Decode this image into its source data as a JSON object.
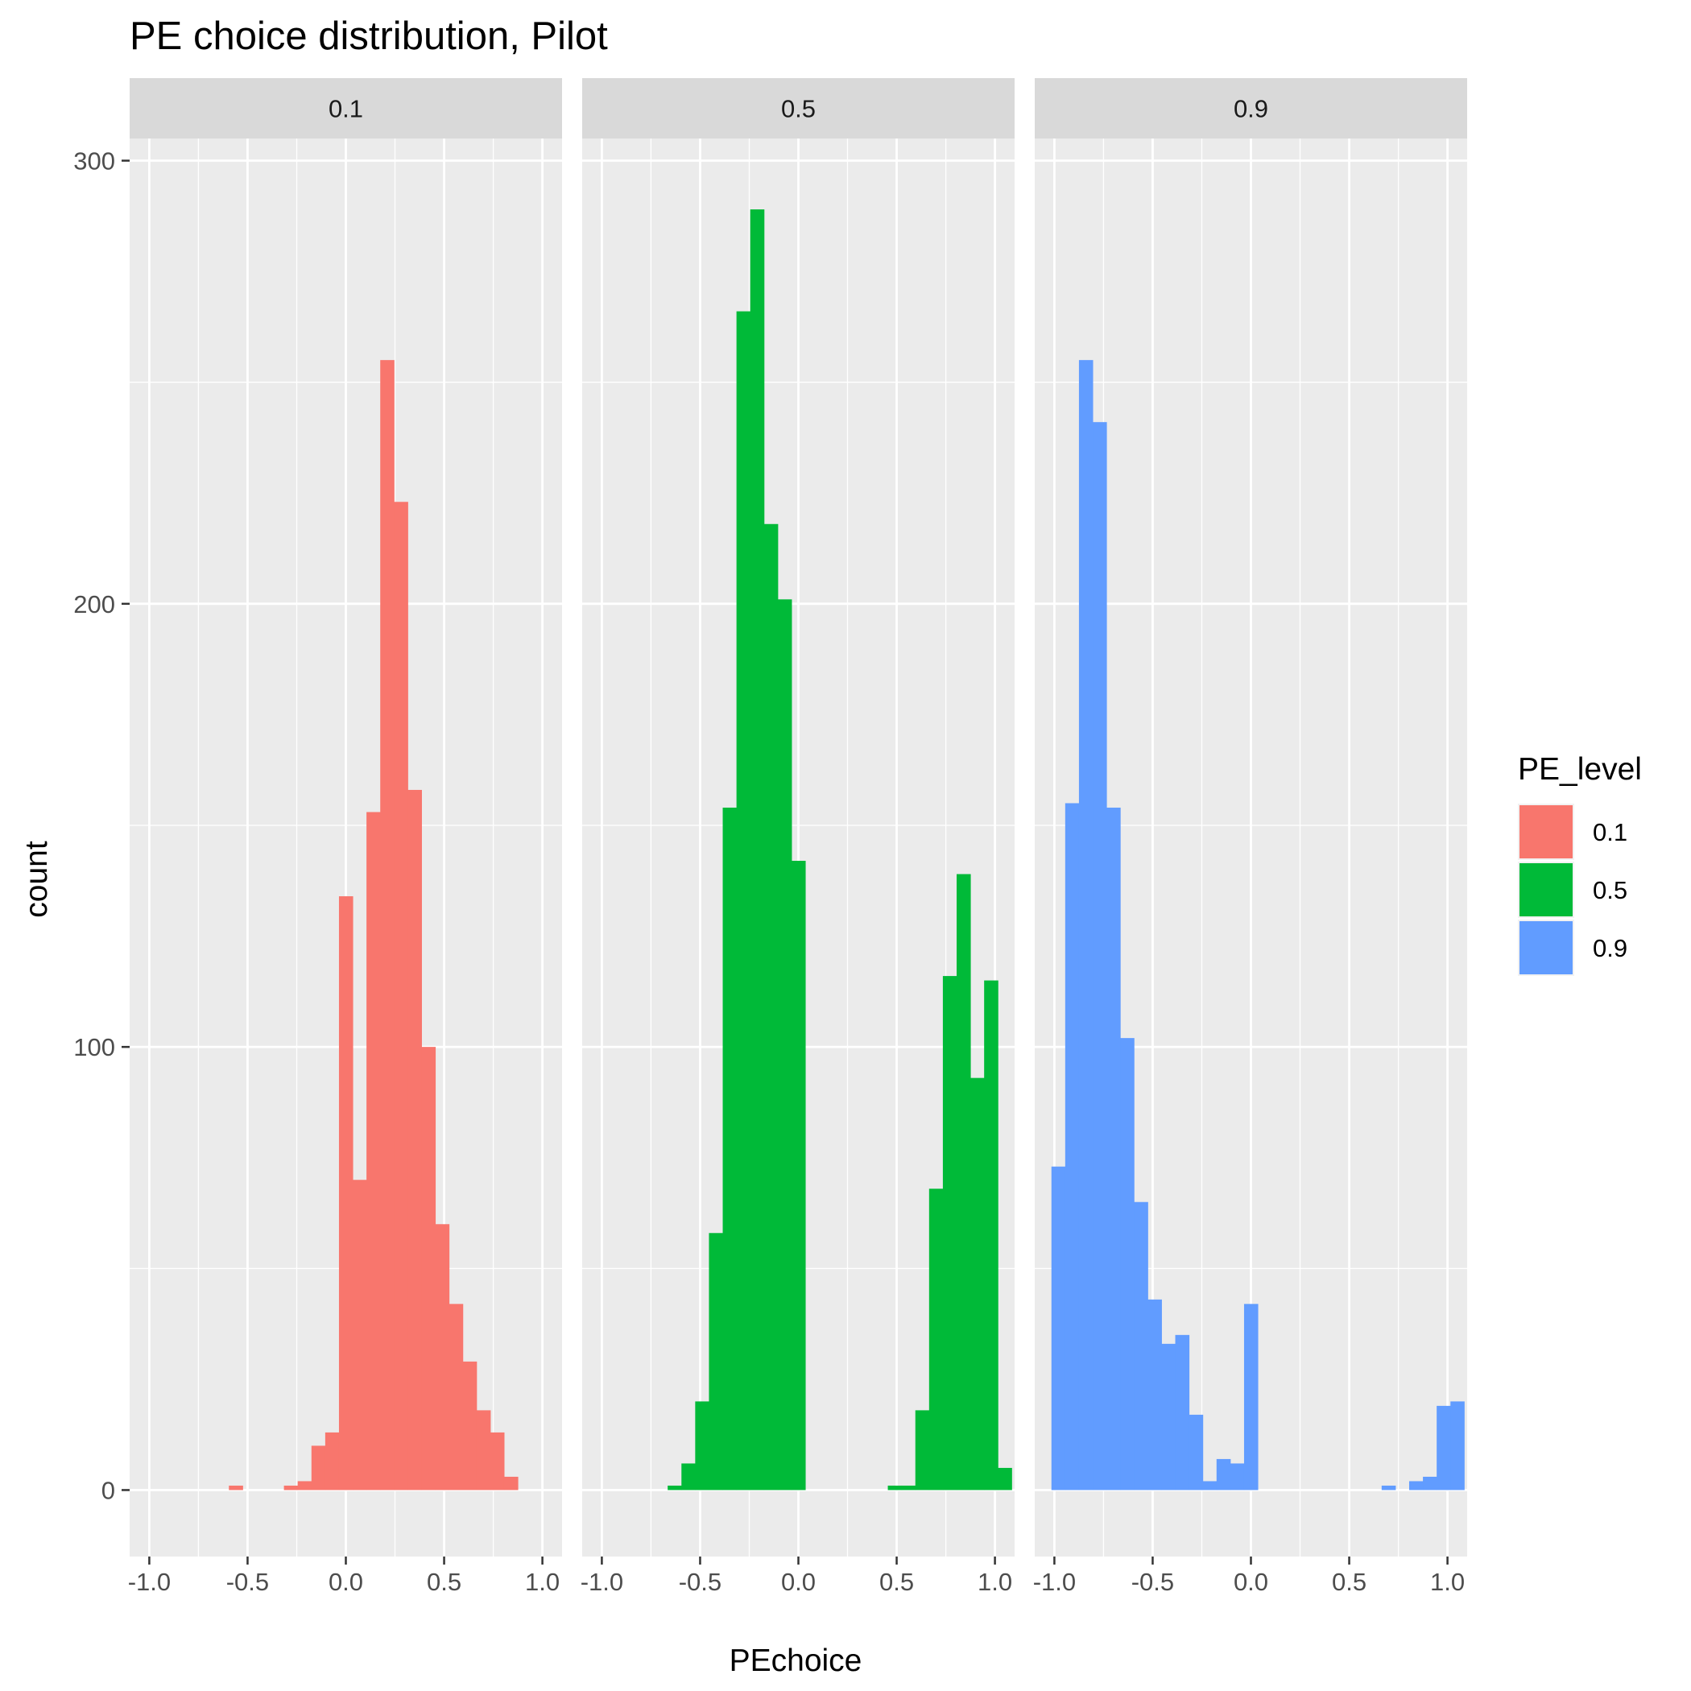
{
  "chart_data": {
    "type": "bar",
    "title": "PE choice distribution, Pilot",
    "xlabel": "PEchoice",
    "ylabel": "count",
    "xlim": [
      -1.1,
      1.1
    ],
    "ylim": [
      -15,
      305
    ],
    "x_ticks": [
      -1.0,
      -0.5,
      0.0,
      0.5,
      1.0
    ],
    "x_tick_labels": [
      "-1.0",
      "-0.5",
      "0.0",
      "0.5",
      "1.0"
    ],
    "y_ticks": [
      0,
      100,
      200,
      300
    ],
    "y_tick_labels": [
      "0",
      "100",
      "200",
      "300"
    ],
    "bin_width": 0.07,
    "grid": true,
    "legend": {
      "title": "PE_level",
      "position": "right",
      "entries": [
        {
          "label": "0.1",
          "color": "#F8766D"
        },
        {
          "label": "0.5",
          "color": "#00BA38"
        },
        {
          "label": "0.9",
          "color": "#619CFF"
        }
      ]
    },
    "panels": [
      {
        "strip": "0.1",
        "color": "#F8766D",
        "bins": [
          {
            "x": -0.56,
            "count": 1
          },
          {
            "x": -0.28,
            "count": 1
          },
          {
            "x": -0.21,
            "count": 2
          },
          {
            "x": -0.14,
            "count": 10
          },
          {
            "x": -0.07,
            "count": 13
          },
          {
            "x": 0.0,
            "count": 134
          },
          {
            "x": 0.07,
            "count": 70
          },
          {
            "x": 0.14,
            "count": 153
          },
          {
            "x": 0.21,
            "count": 255
          },
          {
            "x": 0.28,
            "count": 223
          },
          {
            "x": 0.35,
            "count": 158
          },
          {
            "x": 0.42,
            "count": 100
          },
          {
            "x": 0.49,
            "count": 60
          },
          {
            "x": 0.56,
            "count": 42
          },
          {
            "x": 0.63,
            "count": 29
          },
          {
            "x": 0.7,
            "count": 18
          },
          {
            "x": 0.77,
            "count": 13
          },
          {
            "x": 0.84,
            "count": 3
          }
        ]
      },
      {
        "strip": "0.5",
        "color": "#00BA38",
        "bins": [
          {
            "x": -0.63,
            "count": 1
          },
          {
            "x": -0.56,
            "count": 6
          },
          {
            "x": -0.49,
            "count": 20
          },
          {
            "x": -0.42,
            "count": 58
          },
          {
            "x": -0.35,
            "count": 154
          },
          {
            "x": -0.28,
            "count": 266
          },
          {
            "x": -0.21,
            "count": 289
          },
          {
            "x": -0.14,
            "count": 218
          },
          {
            "x": -0.07,
            "count": 201
          },
          {
            "x": 0.0,
            "count": 142
          },
          {
            "x": 0.49,
            "count": 1
          },
          {
            "x": 0.56,
            "count": 1
          },
          {
            "x": 0.63,
            "count": 18
          },
          {
            "x": 0.7,
            "count": 68
          },
          {
            "x": 0.77,
            "count": 116
          },
          {
            "x": 0.84,
            "count": 139
          },
          {
            "x": 0.91,
            "count": 93
          },
          {
            "x": 0.98,
            "count": 115
          },
          {
            "x": 1.05,
            "count": 5
          }
        ]
      },
      {
        "strip": "0.9",
        "color": "#619CFF",
        "bins": [
          {
            "x": -0.98,
            "count": 73
          },
          {
            "x": -0.91,
            "count": 155
          },
          {
            "x": -0.84,
            "count": 255
          },
          {
            "x": -0.77,
            "count": 241
          },
          {
            "x": -0.7,
            "count": 154
          },
          {
            "x": -0.63,
            "count": 102
          },
          {
            "x": -0.56,
            "count": 65
          },
          {
            "x": -0.49,
            "count": 43
          },
          {
            "x": -0.42,
            "count": 33
          },
          {
            "x": -0.35,
            "count": 35
          },
          {
            "x": -0.28,
            "count": 17
          },
          {
            "x": -0.21,
            "count": 2
          },
          {
            "x": -0.14,
            "count": 7
          },
          {
            "x": -0.07,
            "count": 6
          },
          {
            "x": 0.0,
            "count": 42
          },
          {
            "x": 0.7,
            "count": 1
          },
          {
            "x": 0.84,
            "count": 2
          },
          {
            "x": 0.91,
            "count": 3
          },
          {
            "x": 0.98,
            "count": 19
          },
          {
            "x": 1.05,
            "count": 20
          }
        ]
      }
    ]
  }
}
